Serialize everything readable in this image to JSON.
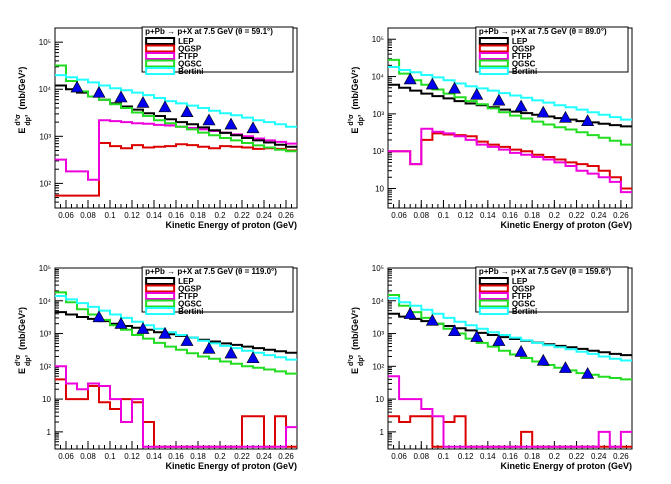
{
  "xlabel": "Kinetic Energy of proton (GeV)",
  "ylabel_main": "E",
  "ylabel_frac_num": "d³σ",
  "ylabel_frac_den": "dp³",
  "ylabel_unit": "(mb/GeV²)",
  "colors": {
    "LEP": "#000000",
    "QGSP": "#dd0000",
    "FTFP": "#ee00dd",
    "QGSC": "#22dd22",
    "Bertini": "#22ffff",
    "data": "#0000ee"
  },
  "chart_data": [
    {
      "type": "line",
      "title": "p+Pb → p+X at 7.5 GeV (θ = 59.1°)",
      "xlabel": "Kinetic Energy of proton (GeV)",
      "ylabel": "E d³σ/dp³ (mb/GeV²)",
      "xlim": [
        0.05,
        0.27
      ],
      "ylim": [
        30,
        200000
      ],
      "yscale": "log",
      "xticks": [
        "0.06",
        "0.08",
        "0.1",
        "0.12",
        "0.14",
        "0.16",
        "0.18",
        "0.2",
        "0.22",
        "0.24",
        "0.26"
      ],
      "yticks": [
        "10²",
        "10³",
        "10⁴",
        "10⁵"
      ],
      "legend": [
        "LEP",
        "QGSP",
        "FTFP",
        "QGSC",
        "Bertini"
      ],
      "series": [
        {
          "name": "LEP",
          "values": [
            12000,
            10000,
            8500,
            7000,
            6000,
            5000,
            4300,
            3700,
            3100,
            2700,
            2300,
            2000,
            1800,
            1550,
            1350,
            1180,
            1050,
            920,
            820,
            740,
            660,
            600
          ]
        },
        {
          "name": "QGSP",
          "values": [
            55,
            55,
            55,
            55,
            720,
            620,
            560,
            650,
            580,
            600,
            620,
            680,
            650,
            600,
            560,
            620,
            600,
            580,
            540,
            560,
            540,
            500
          ]
        },
        {
          "name": "FTFP",
          "values": [
            320,
            180,
            180,
            120,
            2200,
            2100,
            2000,
            1900,
            1850,
            1750,
            1700,
            1600,
            1500,
            1400,
            1300,
            1200,
            1100,
            1000,
            900,
            820,
            760,
            700
          ]
        },
        {
          "name": "QGSC",
          "values": [
            32000,
            15000,
            9000,
            7000,
            6000,
            4800,
            4000,
            3200,
            2700,
            2200,
            1900,
            1600,
            1400,
            1200,
            1050,
            920,
            820,
            720,
            640,
            580,
            520,
            480
          ]
        },
        {
          "name": "Bertini",
          "values": [
            20000,
            18000,
            16000,
            14000,
            12000,
            10500,
            9500,
            8500,
            7500,
            6500,
            5600,
            5000,
            4500,
            4000,
            3500,
            3100,
            2800,
            2500,
            2200,
            2000,
            1800,
            1600
          ]
        },
        {
          "name": "data",
          "x": [
            0.07,
            0.09,
            0.11,
            0.13,
            0.15,
            0.17,
            0.19,
            0.21,
            0.23
          ],
          "values": [
            11000,
            8500,
            6800,
            5200,
            4200,
            3300,
            2200,
            1800,
            1500
          ]
        }
      ]
    },
    {
      "type": "line",
      "title": "p+Pb → p+X at 7.5 GeV (θ = 89.0°)",
      "xlabel": "Kinetic Energy of proton (GeV)",
      "ylabel": "E d³σ/dp³ (mb/GeV²)",
      "xlim": [
        0.05,
        0.27
      ],
      "ylim": [
        3,
        200000
      ],
      "yscale": "log",
      "xticks": [
        "0.06",
        "0.08",
        "0.1",
        "0.12",
        "0.14",
        "0.16",
        "0.18",
        "0.2",
        "0.22",
        "0.24",
        "0.26"
      ],
      "yticks": [
        "10",
        "10²",
        "10³",
        "10⁴",
        "10⁵"
      ],
      "legend": [
        "LEP",
        "QGSP",
        "FTFP",
        "QGSC",
        "Bertini"
      ],
      "series": [
        {
          "name": "LEP",
          "values": [
            6000,
            5000,
            4200,
            3500,
            3000,
            2600,
            2200,
            1900,
            1700,
            1500,
            1300,
            1150,
            1050,
            950,
            850,
            770,
            700,
            640,
            590,
            540,
            500,
            460
          ]
        },
        {
          "name": "QGSP",
          "values": [
            100,
            100,
            45,
            200,
            300,
            280,
            270,
            250,
            180,
            150,
            130,
            110,
            100,
            80,
            70,
            60,
            50,
            45,
            40,
            30,
            20,
            10
          ]
        },
        {
          "name": "FTFP",
          "values": [
            100,
            100,
            45,
            400,
            330,
            300,
            250,
            200,
            150,
            130,
            110,
            90,
            80,
            70,
            60,
            50,
            40,
            30,
            25,
            20,
            15,
            8
          ]
        },
        {
          "name": "QGSC",
          "values": [
            28000,
            12000,
            8000,
            6000,
            4500,
            3500,
            2800,
            2200,
            1800,
            1400,
            1100,
            900,
            750,
            620,
            520,
            440,
            380,
            320,
            270,
            230,
            190,
            150
          ]
        },
        {
          "name": "Bertini",
          "values": [
            18000,
            15000,
            13000,
            11000,
            9500,
            8000,
            6500,
            5500,
            4800,
            4200,
            3600,
            3100,
            2700,
            2300,
            2000,
            1700,
            1500,
            1300,
            1100,
            950,
            820,
            700
          ]
        },
        {
          "name": "data",
          "x": [
            0.07,
            0.09,
            0.11,
            0.13,
            0.15,
            0.17,
            0.19,
            0.21,
            0.23
          ],
          "values": [
            8500,
            6200,
            4800,
            3300,
            2300,
            1600,
            1100,
            800,
            650
          ]
        }
      ]
    },
    {
      "type": "line",
      "title": "p+Pb → p+X at 7.5 GeV (θ = 119.0°)",
      "xlabel": "Kinetic Energy of proton (GeV)",
      "ylabel": "E d³σ/dp³ (mb/GeV²)",
      "xlim": [
        0.05,
        0.27
      ],
      "ylim": [
        0.3,
        100000
      ],
      "yscale": "log",
      "xticks": [
        "0.06",
        "0.08",
        "0.1",
        "0.12",
        "0.14",
        "0.16",
        "0.18",
        "0.2",
        "0.22",
        "0.24",
        "0.26"
      ],
      "yticks": [
        "1",
        "10",
        "10²",
        "10³",
        "10⁴",
        "10⁵"
      ],
      "legend": [
        "LEP",
        "QGSP",
        "FTFP",
        "QGSC",
        "Bertini"
      ],
      "series": [
        {
          "name": "LEP",
          "values": [
            4500,
            3800,
            3200,
            2800,
            2400,
            2000,
            1700,
            1500,
            1300,
            1100,
            950,
            850,
            750,
            650,
            570,
            500,
            450,
            400,
            360,
            320,
            290,
            260
          ]
        },
        {
          "name": "QGSP",
          "values": [
            40,
            10,
            10,
            25,
            8,
            5,
            10,
            8,
            2,
            0.35,
            0.35,
            0.35,
            0.35,
            0.35,
            0.35,
            0.35,
            0.35,
            3,
            3,
            0.35,
            3,
            0.35
          ]
        },
        {
          "name": "FTFP",
          "values": [
            100,
            30,
            20,
            30,
            25,
            10,
            2,
            10,
            0.35,
            0.35,
            0.35,
            0.35,
            0.35,
            0.35,
            0.35,
            0.35,
            0.35,
            0.35,
            0.35,
            0.35,
            0.35,
            1.4
          ]
        },
        {
          "name": "QGSC",
          "values": [
            18000,
            9000,
            5500,
            3800,
            2600,
            1800,
            1300,
            900,
            700,
            520,
            400,
            320,
            250,
            200,
            170,
            140,
            120,
            100,
            90,
            80,
            70,
            60
          ]
        },
        {
          "name": "Bertini",
          "values": [
            14000,
            11000,
            8500,
            6500,
            5000,
            3800,
            3000,
            2300,
            1800,
            1400,
            1100,
            900,
            750,
            600,
            500,
            420,
            360,
            300,
            260,
            220,
            190,
            160
          ]
        },
        {
          "name": "data",
          "x": [
            0.09,
            0.11,
            0.13,
            0.15,
            0.17,
            0.19,
            0.21,
            0.23
          ],
          "values": [
            3200,
            2000,
            1400,
            1000,
            600,
            350,
            250,
            180
          ]
        }
      ]
    },
    {
      "type": "line",
      "title": "p+Pb → p+X at 7.5 GeV (θ = 159.6°)",
      "xlabel": "Kinetic Energy of proton (GeV)",
      "ylabel": "E d³σ/dp³ (mb/GeV²)",
      "xlim": [
        0.05,
        0.27
      ],
      "ylim": [
        0.3,
        100000
      ],
      "yscale": "log",
      "xticks": [
        "0.06",
        "0.08",
        "0.1",
        "0.12",
        "0.14",
        "0.16",
        "0.18",
        "0.2",
        "0.22",
        "0.24",
        "0.26"
      ],
      "yticks": [
        "1",
        "10",
        "10²",
        "10³",
        "10⁴",
        "10⁵"
      ],
      "legend": [
        "LEP",
        "QGSP",
        "FTFP",
        "QGSC",
        "Bertini"
      ],
      "series": [
        {
          "name": "LEP",
          "values": [
            4000,
            3300,
            2800,
            2400,
            2000,
            1700,
            1450,
            1250,
            1050,
            900,
            780,
            680,
            600,
            530,
            470,
            420,
            380,
            340,
            300,
            270,
            240,
            220
          ]
        },
        {
          "name": "QGSP",
          "values": [
            3,
            2,
            3,
            3,
            0.35,
            2,
            3,
            0.35,
            0.35,
            0.35,
            0.35,
            0.35,
            1,
            0.35,
            0.35,
            0.35,
            0.35,
            0.35,
            0.35,
            0.35,
            0.35,
            0.35
          ]
        },
        {
          "name": "FTFP",
          "values": [
            50,
            10,
            10,
            5,
            3,
            0.35,
            0.35,
            0.35,
            0.35,
            0.35,
            0.35,
            0.35,
            0.35,
            0.35,
            0.35,
            0.35,
            0.35,
            0.35,
            0.35,
            1,
            0.35,
            1
          ]
        },
        {
          "name": "QGSC",
          "values": [
            15000,
            7000,
            4500,
            3000,
            2000,
            1400,
            1000,
            700,
            520,
            400,
            300,
            230,
            180,
            140,
            110,
            90,
            75,
            62,
            55,
            48,
            44,
            40
          ]
        },
        {
          "name": "Bertini",
          "values": [
            12000,
            9000,
            7000,
            5300,
            4000,
            3000,
            2300,
            1800,
            1400,
            1100,
            900,
            750,
            620,
            520,
            440,
            380,
            330,
            280,
            240,
            200,
            170,
            150
          ]
        },
        {
          "name": "data",
          "x": [
            0.07,
            0.09,
            0.11,
            0.13,
            0.15,
            0.17,
            0.19,
            0.21,
            0.23
          ],
          "values": [
            4000,
            2500,
            1200,
            800,
            600,
            280,
            150,
            90,
            60
          ]
        }
      ]
    }
  ]
}
